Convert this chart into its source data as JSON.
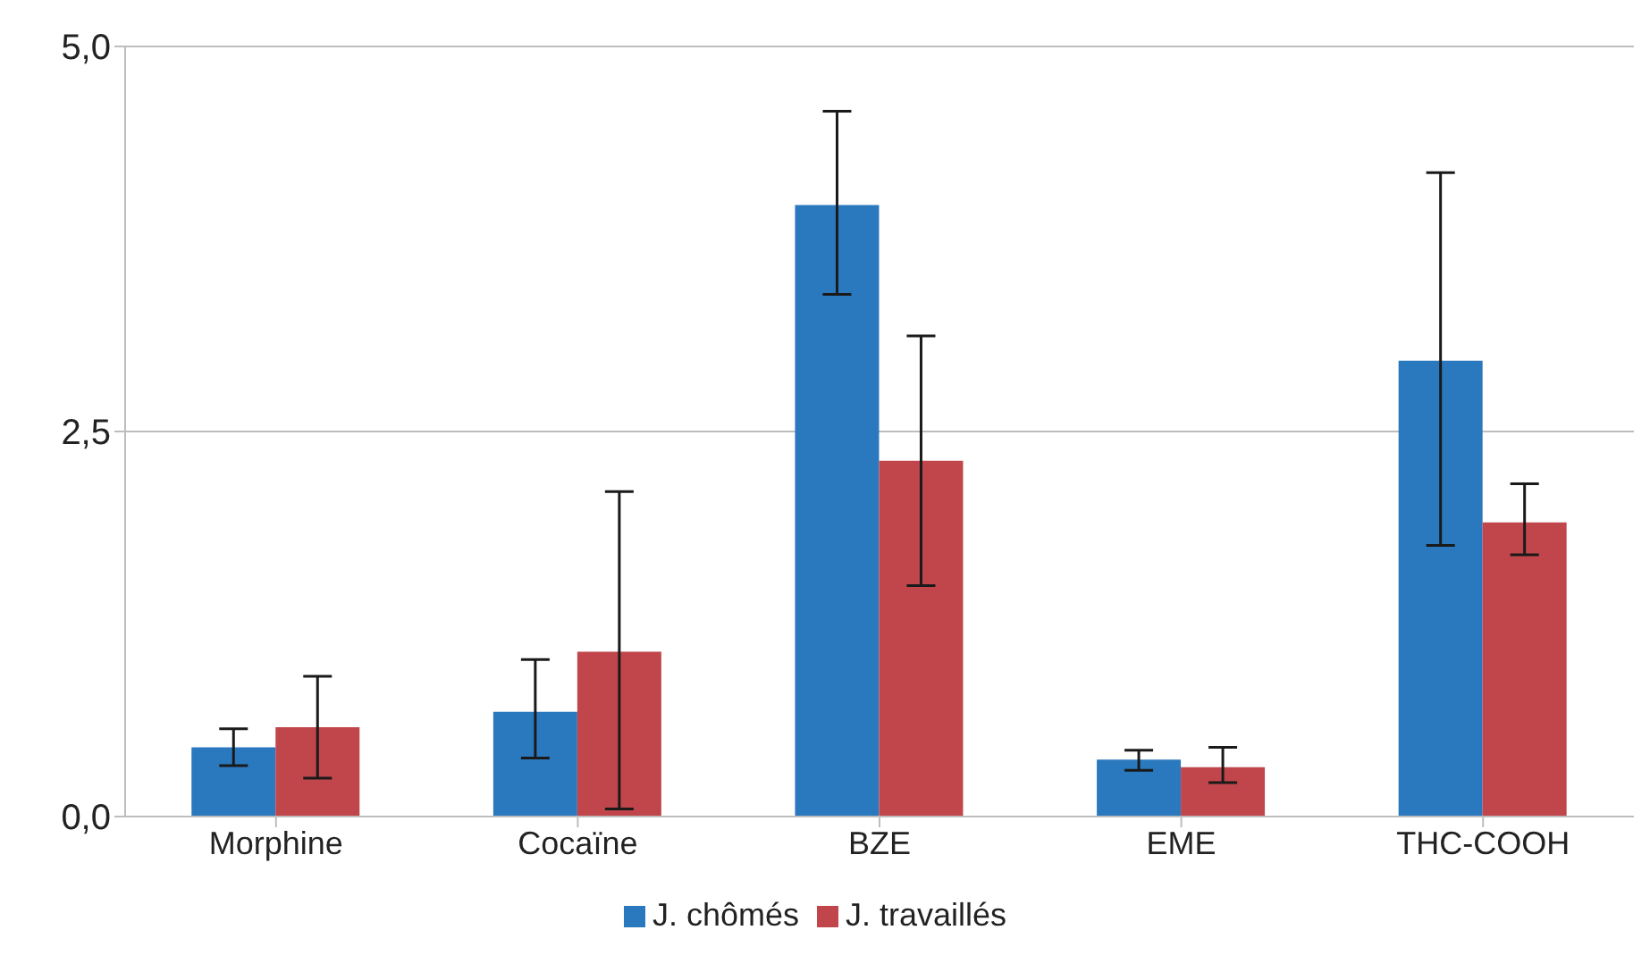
{
  "chart_data": {
    "type": "bar",
    "categories": [
      "Morphine",
      "Cocaïne",
      "BZE",
      "EME",
      "THC-COOH"
    ],
    "series": [
      {
        "name": "J. chômés",
        "color": "#2a78bd",
        "values": [
          0.45,
          0.68,
          3.97,
          0.37,
          2.96
        ],
        "errors": [
          [
            0.33,
            0.57
          ],
          [
            0.38,
            1.02
          ],
          [
            3.39,
            4.58
          ],
          [
            0.3,
            0.43
          ],
          [
            1.76,
            4.18
          ]
        ]
      },
      {
        "name": "J. travaillés",
        "color": "#c0464b",
        "values": [
          0.58,
          1.07,
          2.31,
          0.32,
          1.91
        ],
        "errors": [
          [
            0.25,
            0.91
          ],
          [
            0.05,
            2.11
          ],
          [
            1.5,
            3.12
          ],
          [
            0.22,
            0.45
          ],
          [
            1.7,
            2.16
          ]
        ]
      }
    ],
    "ylim": [
      0,
      5
    ],
    "yticks": [
      {
        "value": 0,
        "label": "0,0"
      },
      {
        "value": 2.5,
        "label": "2,5"
      },
      {
        "value": 5,
        "label": "5,0"
      }
    ],
    "grid": "y",
    "legend": "bottom"
  }
}
